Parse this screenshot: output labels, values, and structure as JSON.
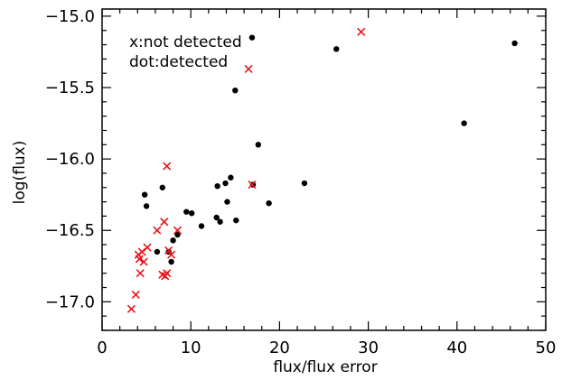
{
  "chart_data": {
    "type": "scatter",
    "title": "",
    "xlabel": "flux/flux error",
    "ylabel": "log(flux)",
    "xlim": [
      0,
      50
    ],
    "ylim": [
      -17.2,
      -14.95
    ],
    "x_ticks": [
      0,
      10,
      20,
      30,
      40,
      50
    ],
    "x_tick_labels": [
      "0",
      "10",
      "20",
      "30",
      "40",
      "50"
    ],
    "y_ticks": [
      -17.0,
      -16.5,
      -16.0,
      -15.5,
      -15.0
    ],
    "y_tick_labels": [
      "−17.0",
      "−16.5",
      "−16.0",
      "−15.5",
      "−15.0"
    ],
    "grid": false,
    "legend": {
      "placement": "top-left",
      "lines": [
        "x:not detected",
        "dot:detected"
      ]
    },
    "series": [
      {
        "marker": "dot",
        "color": "#000000",
        "points": [
          [
            4.8,
            -16.25
          ],
          [
            5.0,
            -16.33
          ],
          [
            6.2,
            -16.65
          ],
          [
            6.8,
            -16.2
          ],
          [
            7.5,
            -16.65
          ],
          [
            7.8,
            -16.72
          ],
          [
            8.0,
            -16.57
          ],
          [
            8.5,
            -16.53
          ],
          [
            9.5,
            -16.37
          ],
          [
            10.1,
            -16.38
          ],
          [
            11.2,
            -16.47
          ],
          [
            12.9,
            -16.41
          ],
          [
            13.0,
            -16.19
          ],
          [
            13.3,
            -16.44
          ],
          [
            13.9,
            -16.17
          ],
          [
            14.1,
            -16.3
          ],
          [
            14.5,
            -16.13
          ],
          [
            15.0,
            -15.52
          ],
          [
            15.1,
            -16.43
          ],
          [
            16.9,
            -15.15
          ],
          [
            17.0,
            -16.18
          ],
          [
            17.6,
            -15.9
          ],
          [
            18.8,
            -16.31
          ],
          [
            22.8,
            -16.17
          ],
          [
            26.4,
            -15.23
          ],
          [
            40.8,
            -15.75
          ],
          [
            46.5,
            -15.19
          ]
        ]
      },
      {
        "marker": "x",
        "color": "#e8141a",
        "points": [
          [
            3.3,
            -17.05
          ],
          [
            3.8,
            -16.95
          ],
          [
            4.1,
            -16.67
          ],
          [
            4.2,
            -16.7
          ],
          [
            4.3,
            -16.8
          ],
          [
            4.5,
            -16.65
          ],
          [
            4.7,
            -16.72
          ],
          [
            5.1,
            -16.62
          ],
          [
            6.2,
            -16.5
          ],
          [
            6.8,
            -16.81
          ],
          [
            7.0,
            -16.44
          ],
          [
            7.1,
            -16.82
          ],
          [
            7.3,
            -16.8
          ],
          [
            7.3,
            -16.05
          ],
          [
            7.5,
            -16.64
          ],
          [
            7.8,
            -16.67
          ],
          [
            8.5,
            -16.5
          ],
          [
            16.5,
            -15.37
          ],
          [
            16.9,
            -16.18
          ],
          [
            29.2,
            -15.11
          ]
        ]
      }
    ]
  }
}
